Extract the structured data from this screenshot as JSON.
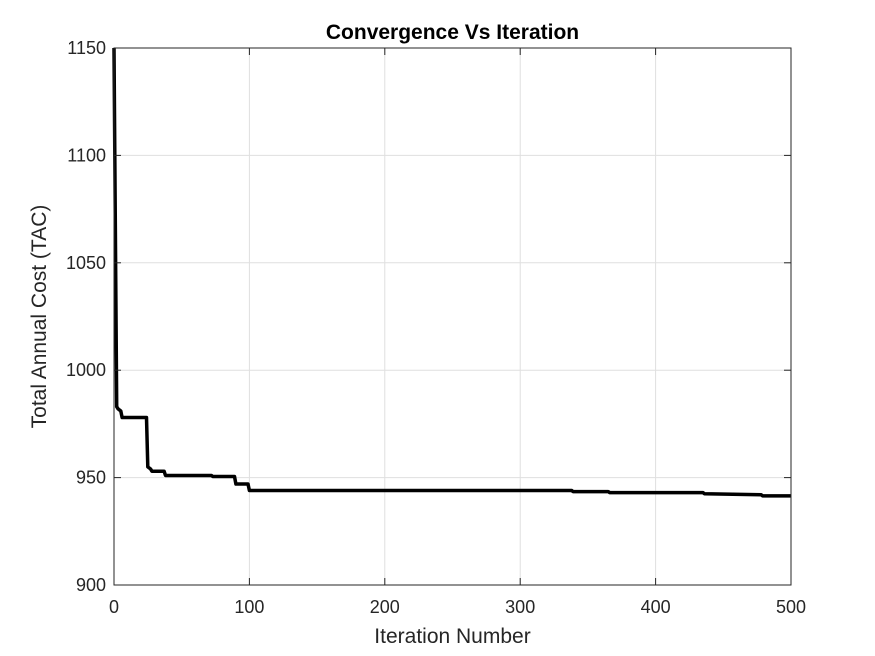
{
  "chart_data": {
    "type": "line",
    "title": "Convergence Vs Iteration",
    "xlabel": "Iteration Number",
    "ylabel": "Total Annual Cost (TAC)",
    "xlim": [
      0,
      500
    ],
    "ylim": [
      900,
      1150
    ],
    "xticks": [
      "0",
      "100",
      "200",
      "300",
      "400",
      "500"
    ],
    "yticks": [
      "900",
      "950",
      "1000",
      "1050",
      "1100",
      "1150"
    ],
    "grid": true,
    "line_color": "#000000",
    "series": [
      {
        "x": [
          0,
          2,
          3,
          5,
          6,
          24,
          25,
          27,
          28,
          37,
          38,
          72,
          73,
          89,
          90,
          99,
          100,
          338,
          339,
          365,
          366,
          435,
          436,
          478,
          479,
          500
        ],
        "y": [
          1150,
          983,
          982,
          981,
          978,
          978,
          955,
          954,
          953,
          953,
          951,
          951,
          950.5,
          950.5,
          947,
          947,
          944,
          944,
          943.5,
          943.5,
          943,
          943,
          942.5,
          942,
          941.5,
          941.5
        ]
      }
    ]
  }
}
